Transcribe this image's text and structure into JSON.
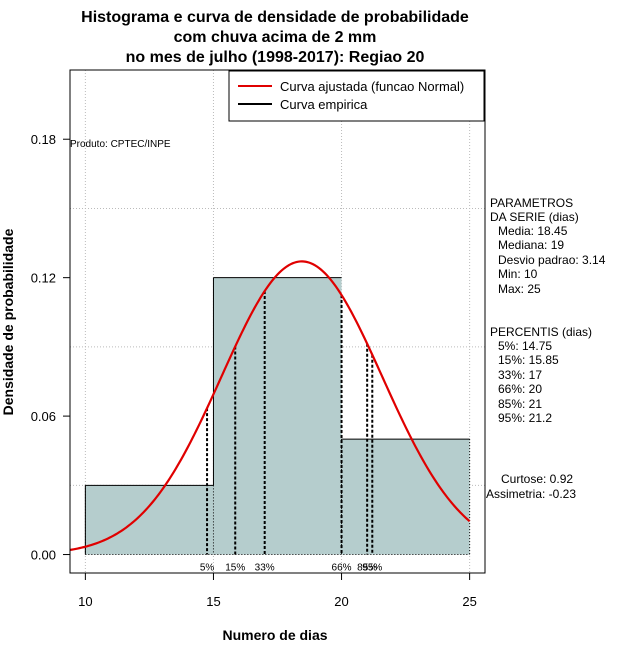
{
  "chart_data": {
    "type": "bar",
    "title_lines": [
      "Histograma e curva de densidade de probabilidade",
      "com chuva acima de 2 mm",
      "no mes de julho (1998-2017): Regiao 20"
    ],
    "xlabel": "Numero de dias",
    "ylabel": "Densidade de probabilidade",
    "xlim": [
      9.4,
      25.6
    ],
    "ylim": [
      -0.008,
      0.21
    ],
    "x_ticks": [
      10,
      15,
      20,
      25
    ],
    "y_ticks": [
      0.0,
      0.06,
      0.12,
      0.18
    ],
    "x_tick_labels": [
      "10",
      "15",
      "20",
      "25"
    ],
    "y_tick_labels": [
      "0.00",
      "0.06",
      "0.12",
      "0.18"
    ],
    "bins": [
      {
        "from": 10,
        "to": 15,
        "density": 0.03
      },
      {
        "from": 15,
        "to": 20,
        "density": 0.12
      },
      {
        "from": 20,
        "to": 25,
        "density": 0.05
      }
    ],
    "bar_color": "#b5cdcd",
    "curve_color": "#e00000",
    "normal_fit": {
      "mean": 18.45,
      "sd": 3.14
    },
    "percentiles": [
      {
        "label": "5%",
        "x": 14.75
      },
      {
        "label": "15%",
        "x": 15.85
      },
      {
        "label": "33%",
        "x": 17
      },
      {
        "label": "66%",
        "x": 20
      },
      {
        "label": "85%",
        "x": 21
      },
      {
        "label": "95%",
        "x": 21.2
      }
    ],
    "legend": {
      "position": "top-right",
      "entries": [
        {
          "label": "Curva ajustada (funcao Normal)",
          "color": "#e00000"
        },
        {
          "label": "Curva empirica",
          "color": "#000000"
        }
      ]
    },
    "product_label": "Produto: CPTEC/INPE",
    "parametros": {
      "header": [
        "PARAMETROS",
        "DA SERIE (dias)"
      ],
      "lines": [
        "Media: 18.45",
        "Mediana: 19",
        "Desvio padrao: 3.14",
        "Min: 10",
        "Max: 25"
      ]
    },
    "percentis": {
      "header": "PERCENTIS (dias)",
      "lines": [
        "5%: 14.75",
        "15%: 15.85",
        "33%: 17",
        "66%: 20",
        "85%: 21",
        "95%: 21.2"
      ]
    },
    "extra_stats": [
      "Curtose: 0.92",
      "Assimetria: -0.23"
    ]
  }
}
